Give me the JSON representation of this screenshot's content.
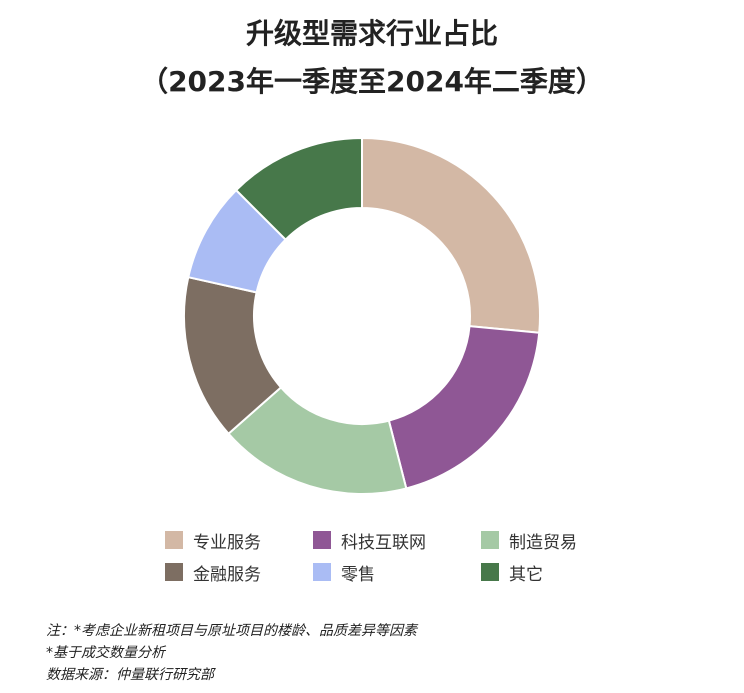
{
  "chart_data": {
    "type": "pie",
    "title": "升级型需求行业占比",
    "subtitle": "（2023年一季度至2024年二季度）",
    "legend_position": "bottom",
    "slices": [
      {
        "label": "专业服务",
        "value": 26.5,
        "color": "#d3b8a5"
      },
      {
        "label": "科技互联网",
        "value": 19.5,
        "color": "#8f5795"
      },
      {
        "label": "制造贸易",
        "value": 17.5,
        "color": "#a5c9a5"
      },
      {
        "label": "金融服务",
        "value": 15.0,
        "color": "#7d6e62"
      },
      {
        "label": "零售",
        "value": 9.0,
        "color": "#aabcf4"
      },
      {
        "label": "其它",
        "value": 12.5,
        "color": "#47784a"
      }
    ]
  },
  "notes": [
    "注：*考虑企业新租项目与原址项目的楼龄、品质差异等因素",
    "*基于成交数量分析",
    "数据来源：仲量联行研究部"
  ]
}
